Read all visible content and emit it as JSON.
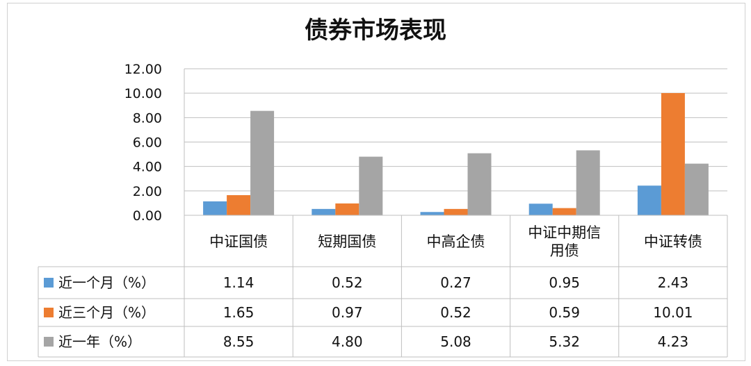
{
  "chart_data": {
    "type": "bar",
    "title": "债券市场表现",
    "categories": [
      "中证国债",
      "短期国债",
      "中高企债",
      "中证中期信用债",
      "中证转债"
    ],
    "category_lines": [
      [
        "中证国债"
      ],
      [
        "短期国债"
      ],
      [
        "中高企债"
      ],
      [
        "中证中期信",
        "用债"
      ],
      [
        "中证转债"
      ]
    ],
    "series": [
      {
        "name": "近一个月（%）",
        "values": [
          1.14,
          0.52,
          0.27,
          0.95,
          2.43
        ],
        "labels": [
          "1.14",
          "0.52",
          "0.27",
          "0.95",
          "2.43"
        ],
        "color": "#5b9bd5"
      },
      {
        "name": "近三个月（%）",
        "values": [
          1.65,
          0.97,
          0.52,
          0.59,
          10.01
        ],
        "labels": [
          "1.65",
          "0.97",
          "0.52",
          "0.59",
          "10.01"
        ],
        "color": "#ed7d31"
      },
      {
        "name": "近一年（%）",
        "values": [
          8.55,
          4.8,
          5.08,
          5.32,
          4.23
        ],
        "labels": [
          "8.55",
          "4.80",
          "5.08",
          "5.32",
          "4.23"
        ],
        "color": "#a5a5a5"
      }
    ],
    "ylim": [
      0,
      12
    ],
    "yticks": [
      "0.00",
      "2.00",
      "4.00",
      "6.00",
      "8.00",
      "10.00",
      "12.00"
    ],
    "grid": true,
    "legend": "data-table"
  }
}
